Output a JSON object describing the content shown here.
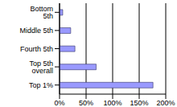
{
  "chart_data": {
    "type": "bar",
    "orientation": "horizontal",
    "categories": [
      "Bottom 5th",
      "Middle 5th",
      "Fourth 5th",
      "Top 5th overall",
      "Top 1%"
    ],
    "values": [
      6,
      21,
      29,
      69,
      176
    ],
    "color": "#9999ff",
    "xlim": [
      0,
      200
    ],
    "xticks": [
      {
        "value": 0,
        "label": "0%"
      },
      {
        "value": 50,
        "label": "50%"
      },
      {
        "value": 100,
        "label": "100%"
      },
      {
        "value": 150,
        "label": "150%"
      },
      {
        "value": 200,
        "label": "200%"
      }
    ],
    "grid": true
  }
}
